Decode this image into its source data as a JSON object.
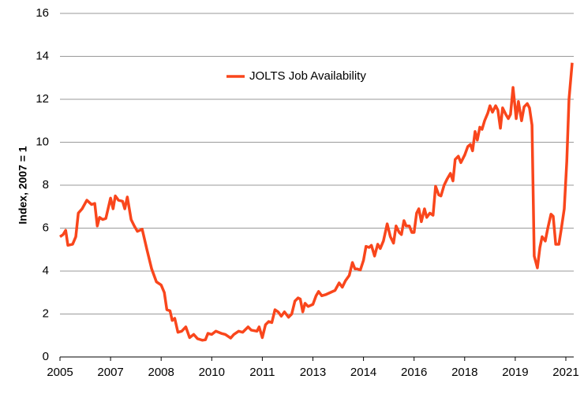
{
  "chart_data": {
    "type": "line",
    "y_label": "Index, 2007 = 1",
    "xlim": [
      2005,
      2021.25
    ],
    "xticks": [
      {
        "value": 2005,
        "label": "2005"
      },
      {
        "value": 2006.6,
        "label": "2007"
      },
      {
        "value": 2008.2,
        "label": "2008"
      },
      {
        "value": 2009.8,
        "label": "2010"
      },
      {
        "value": 2011.4,
        "label": "2011"
      },
      {
        "value": 2013,
        "label": "2013"
      },
      {
        "value": 2014.6,
        "label": "2014"
      },
      {
        "value": 2016.2,
        "label": "2016"
      },
      {
        "value": 2017.8,
        "label": "2018"
      },
      {
        "value": 2019.4,
        "label": "2019"
      },
      {
        "value": 2021,
        "label": "2021"
      }
    ],
    "ylim": [
      0,
      16
    ],
    "yticks": [
      0,
      2,
      4,
      6,
      8,
      10,
      12,
      14,
      16
    ],
    "grid": true,
    "legend": "top",
    "x": [
      2005.0,
      2005.1,
      2005.18,
      2005.25,
      2005.4,
      2005.5,
      2005.58,
      2005.7,
      2005.85,
      2006.0,
      2006.1,
      2006.18,
      2006.25,
      2006.35,
      2006.45,
      2006.6,
      2006.68,
      2006.75,
      2006.85,
      2006.98,
      2007.05,
      2007.13,
      2007.25,
      2007.35,
      2007.45,
      2007.6,
      2007.75,
      2007.9,
      2008.05,
      2008.2,
      2008.3,
      2008.38,
      2008.48,
      2008.55,
      2008.63,
      2008.73,
      2008.85,
      2008.98,
      2009.1,
      2009.23,
      2009.35,
      2009.5,
      2009.6,
      2009.68,
      2009.8,
      2009.93,
      2010.1,
      2010.23,
      2010.4,
      2010.5,
      2010.65,
      2010.78,
      2010.95,
      2011.05,
      2011.23,
      2011.3,
      2011.4,
      2011.5,
      2011.6,
      2011.7,
      2011.8,
      2011.9,
      2012.0,
      2012.1,
      2012.23,
      2012.33,
      2012.43,
      2012.53,
      2012.6,
      2012.68,
      2012.75,
      2012.85,
      2013.0,
      2013.1,
      2013.18,
      2013.28,
      2013.4,
      2013.55,
      2013.7,
      2013.83,
      2013.93,
      2014.03,
      2014.15,
      2014.25,
      2014.33,
      2014.4,
      2014.5,
      2014.6,
      2014.68,
      2014.78,
      2014.85,
      2014.95,
      2015.05,
      2015.13,
      2015.23,
      2015.35,
      2015.45,
      2015.55,
      2015.63,
      2015.73,
      2015.8,
      2015.88,
      2015.95,
      2016.05,
      2016.13,
      2016.2,
      2016.28,
      2016.35,
      2016.43,
      2016.53,
      2016.6,
      2016.7,
      2016.8,
      2016.88,
      2016.98,
      2017.05,
      2017.15,
      2017.25,
      2017.35,
      2017.43,
      2017.5,
      2017.6,
      2017.68,
      2017.8,
      2017.9,
      2017.98,
      2018.05,
      2018.13,
      2018.2,
      2018.28,
      2018.35,
      2018.43,
      2018.53,
      2018.6,
      2018.68,
      2018.78,
      2018.85,
      2018.93,
      2019.0,
      2019.1,
      2019.18,
      2019.25,
      2019.33,
      2019.43,
      2019.5,
      2019.6,
      2019.68,
      2019.78,
      2019.85,
      2019.93,
      2020.0,
      2020.1,
      2020.18,
      2020.25,
      2020.35,
      2020.43,
      2020.53,
      2020.6,
      2020.68,
      2020.78,
      2020.85,
      2020.95,
      2021.03,
      2021.1,
      2021.2
    ],
    "series": [
      {
        "name": "JOLTS Job Availability",
        "color": "#f9461c",
        "values": [
          5.6,
          5.7,
          5.9,
          5.2,
          5.25,
          5.6,
          6.7,
          6.9,
          7.3,
          7.1,
          7.15,
          6.1,
          6.5,
          6.4,
          6.45,
          7.4,
          6.9,
          7.5,
          7.3,
          7.25,
          6.9,
          7.45,
          6.4,
          6.1,
          5.85,
          5.95,
          5.0,
          4.1,
          3.5,
          3.35,
          3.0,
          2.2,
          2.15,
          1.7,
          1.8,
          1.15,
          1.2,
          1.4,
          0.9,
          1.05,
          0.85,
          0.78,
          0.8,
          1.1,
          1.05,
          1.2,
          1.1,
          1.05,
          0.88,
          1.05,
          1.2,
          1.15,
          1.4,
          1.25,
          1.2,
          1.4,
          0.9,
          1.5,
          1.65,
          1.6,
          2.2,
          2.1,
          1.9,
          2.1,
          1.85,
          2.0,
          2.6,
          2.75,
          2.7,
          2.1,
          2.5,
          2.35,
          2.45,
          2.85,
          3.05,
          2.85,
          2.9,
          3.0,
          3.1,
          3.45,
          3.25,
          3.55,
          3.8,
          4.4,
          4.1,
          4.1,
          4.05,
          4.5,
          5.15,
          5.1,
          5.2,
          4.7,
          5.25,
          5.05,
          5.4,
          6.2,
          5.6,
          5.3,
          6.1,
          5.8,
          5.7,
          6.35,
          6.1,
          6.1,
          5.8,
          5.8,
          6.7,
          6.9,
          6.3,
          6.9,
          6.5,
          6.7,
          6.6,
          7.95,
          7.55,
          7.5,
          8.0,
          8.3,
          8.55,
          8.2,
          9.2,
          9.35,
          9.05,
          9.4,
          9.8,
          9.9,
          9.6,
          10.5,
          10.1,
          10.7,
          10.6,
          11.0,
          11.35,
          11.7,
          11.4,
          11.7,
          11.5,
          10.65,
          11.6,
          11.3,
          11.1,
          11.3,
          12.55,
          11.1,
          11.9,
          11.0,
          11.65,
          11.8,
          11.6,
          10.8,
          4.7,
          4.15,
          5.1,
          5.6,
          5.4,
          6.0,
          6.65,
          6.55,
          5.25,
          5.25,
          5.9,
          6.9,
          9.1,
          12.0,
          13.7
        ]
      }
    ]
  }
}
